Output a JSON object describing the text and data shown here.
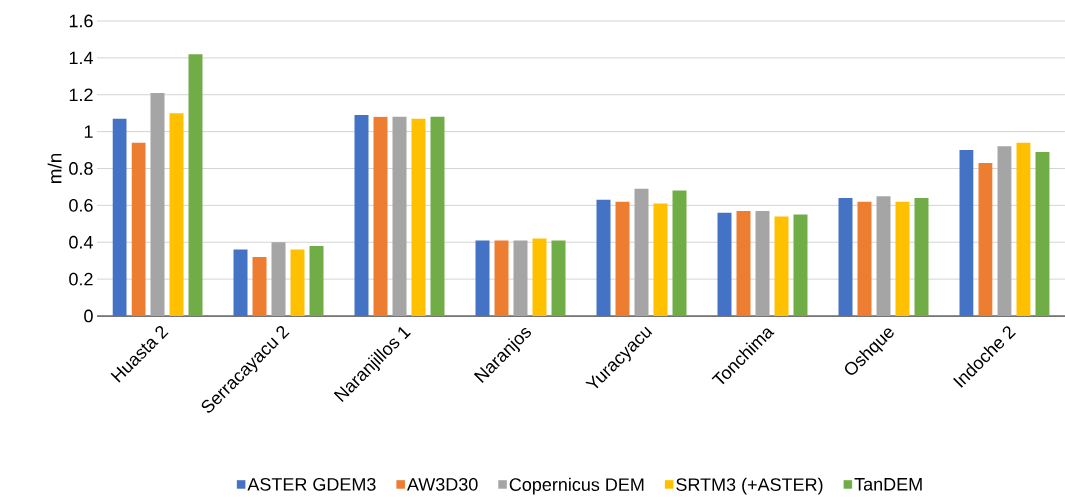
{
  "chart_data": {
    "type": "bar",
    "ylabel": "m/n",
    "categories": [
      "Huasta 2",
      "Serracayacu 2",
      "Naranjillos 1",
      "Naranjos",
      "Yuracyacu",
      "Tonchima",
      "Oshque",
      "Indoche 2"
    ],
    "series": [
      {
        "name": "ASTER GDEM3",
        "color": "#4472c4",
        "values": [
          1.07,
          0.36,
          1.09,
          0.41,
          0.63,
          0.56,
          0.64,
          0.9
        ]
      },
      {
        "name": "AW3D30",
        "color": "#ed7d31",
        "values": [
          0.94,
          0.32,
          1.08,
          0.41,
          0.62,
          0.57,
          0.62,
          0.83
        ]
      },
      {
        "name": "Copernicus DEM",
        "color": "#a5a5a5",
        "values": [
          1.21,
          0.4,
          1.08,
          0.41,
          0.69,
          0.57,
          0.65,
          0.92
        ]
      },
      {
        "name": "SRTM3 (+ASTER)",
        "color": "#ffc000",
        "values": [
          1.1,
          0.36,
          1.07,
          0.42,
          0.61,
          0.54,
          0.62,
          0.94
        ]
      },
      {
        "name": "TanDEM",
        "color": "#70ad47",
        "values": [
          1.42,
          0.38,
          1.08,
          0.41,
          0.68,
          0.55,
          0.64,
          0.89
        ]
      }
    ],
    "ylim": [
      0,
      1.6
    ],
    "yticks": [
      0,
      0.2,
      0.4,
      0.6,
      0.8,
      1,
      1.2,
      1.4,
      1.6
    ],
    "grid": "y",
    "legend": "bottom"
  }
}
